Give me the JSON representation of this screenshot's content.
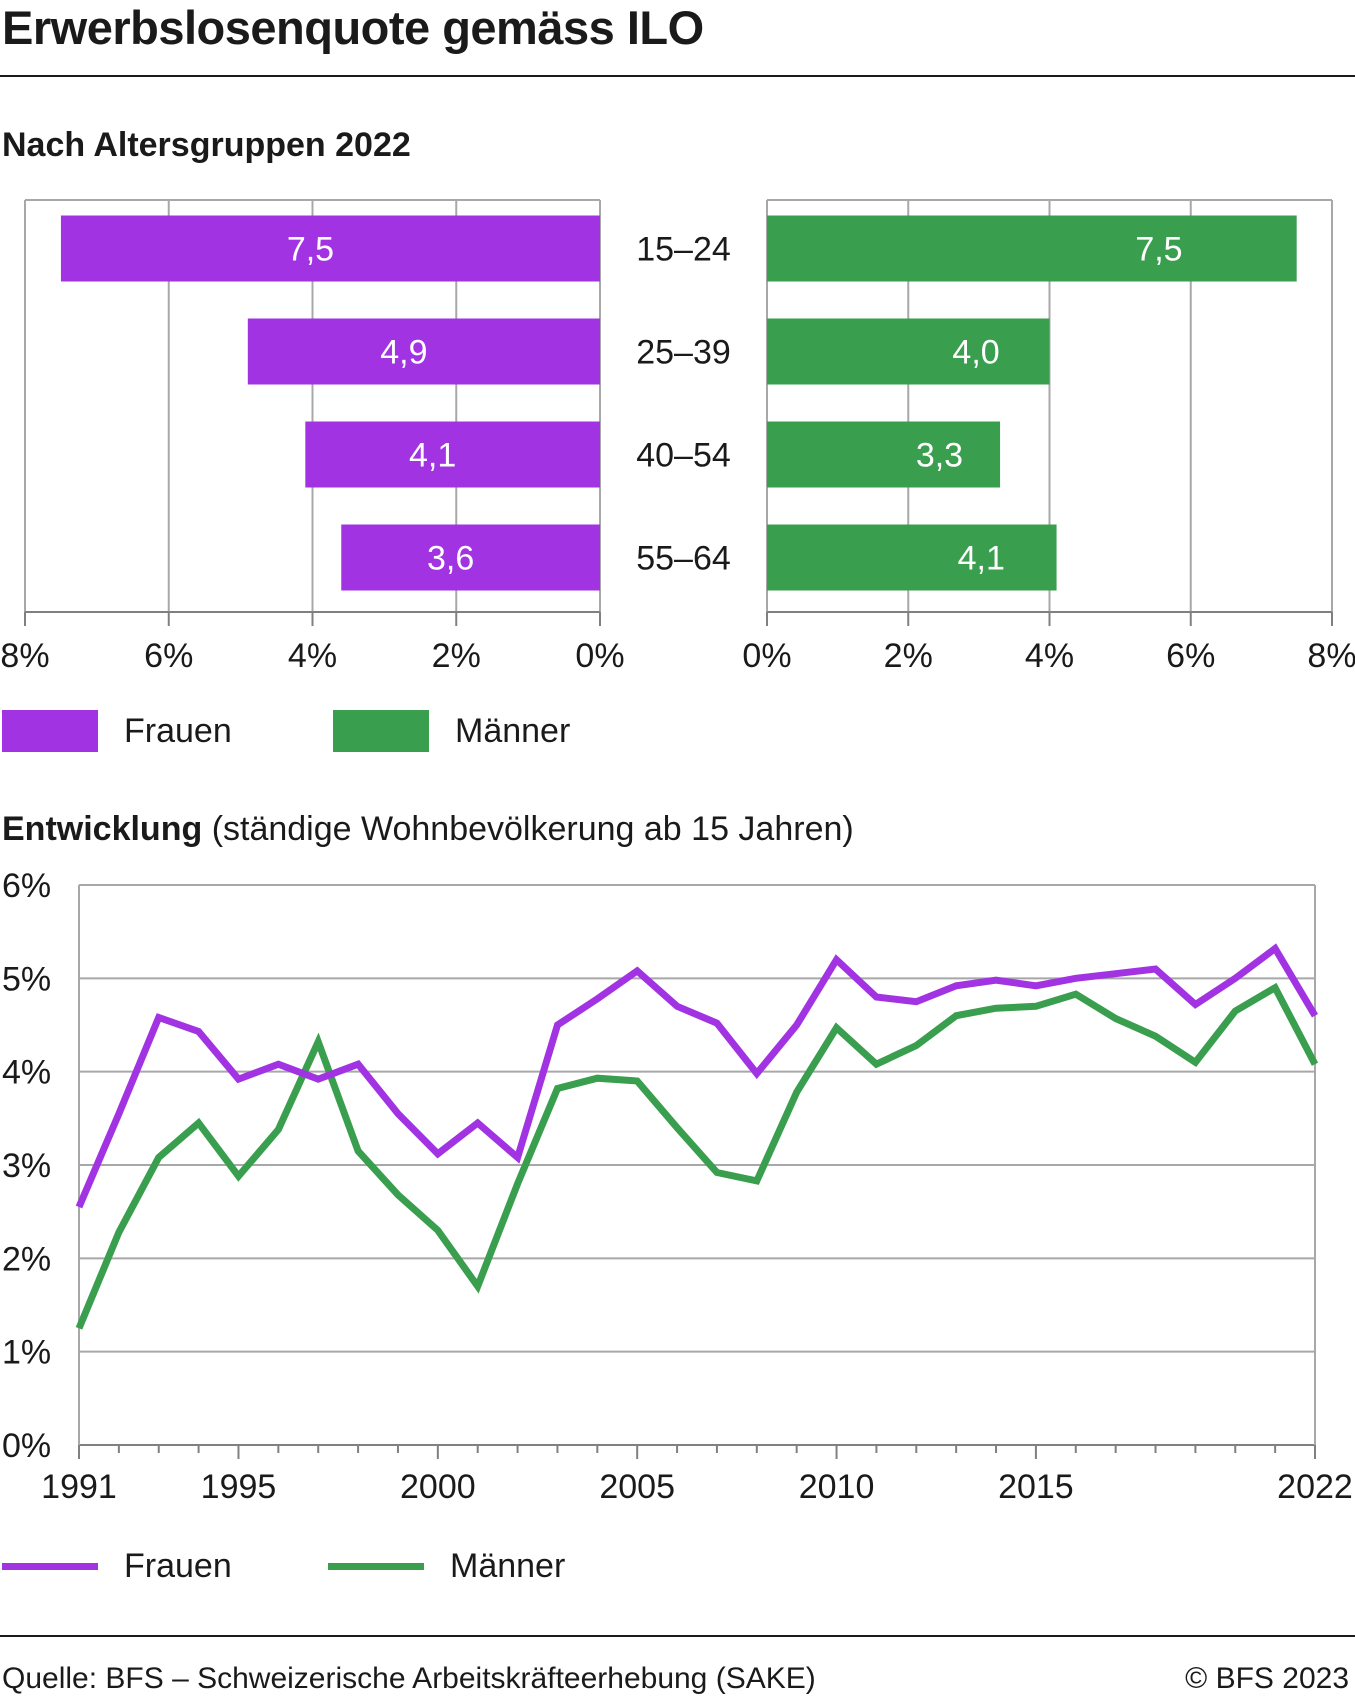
{
  "title": "Erwerbslosenquote gemäss ILO",
  "source": "Quelle: BFS – Schweizerische Arbeitskräfteerhebung (SAKE)",
  "copyright": "© BFS 2023",
  "colors": {
    "frauen": "#a233e3",
    "maenner": "#3a9e4f",
    "grid": "#a8a8a8",
    "axis": "#808080"
  },
  "legend": {
    "frauen": "Frauen",
    "maenner": "Männer"
  },
  "chart_data": [
    {
      "type": "bar",
      "title": "Nach Altersgruppen 2022",
      "categories": [
        "15–24",
        "25–39",
        "40–54",
        "55–64"
      ],
      "series": [
        {
          "name": "Frauen",
          "values": [
            7.5,
            4.9,
            4.1,
            3.6
          ],
          "labels": [
            "7,5",
            "4,9",
            "4,1",
            "3,6"
          ],
          "side": "left"
        },
        {
          "name": "Männer",
          "values": [
            7.5,
            4.0,
            3.3,
            4.1
          ],
          "labels": [
            "7,5",
            "4,0",
            "3,3",
            "4,1"
          ],
          "side": "right"
        }
      ],
      "xlim": [
        0,
        8
      ],
      "ticks_left": [
        "8%",
        "6%",
        "4%",
        "2%",
        "0%"
      ],
      "ticks_right": [
        "0%",
        "2%",
        "4%",
        "6%",
        "8%"
      ],
      "grid": true,
      "legend_position": "bottom-left"
    },
    {
      "type": "line",
      "title": "Entwicklung",
      "subtitle": "(ständige Wohnbevölkerung ab 15 Jahren)",
      "x": [
        1991,
        1992,
        1993,
        1994,
        1995,
        1996,
        1997,
        1998,
        1999,
        2000,
        2001,
        2002,
        2003,
        2004,
        2005,
        2006,
        2007,
        2008,
        2009,
        2010,
        2011,
        2012,
        2013,
        2014,
        2015,
        2016,
        2017,
        2018,
        2019,
        2020,
        2021,
        2022
      ],
      "series": [
        {
          "name": "Frauen",
          "values": [
            2.55,
            3.55,
            4.58,
            4.43,
            3.92,
            4.08,
            3.92,
            4.08,
            3.55,
            3.12,
            3.45,
            3.08,
            4.5,
            4.78,
            5.08,
            4.7,
            4.52,
            3.98,
            4.5,
            5.2,
            4.8,
            4.75,
            4.92,
            4.98,
            4.92,
            5.0,
            5.05,
            5.1,
            4.72,
            5.0,
            5.32,
            4.6
          ]
        },
        {
          "name": "Männer",
          "values": [
            1.25,
            2.28,
            3.08,
            3.45,
            2.88,
            3.38,
            4.32,
            3.15,
            2.68,
            2.3,
            1.7,
            2.8,
            3.82,
            3.93,
            3.9,
            3.4,
            2.92,
            2.83,
            3.78,
            4.47,
            4.08,
            4.28,
            4.6,
            4.68,
            4.7,
            4.83,
            4.57,
            4.38,
            4.1,
            4.65,
            4.9,
            4.08
          ]
        }
      ],
      "ylim": [
        0,
        6
      ],
      "yticks": [
        "0%",
        "1%",
        "2%",
        "3%",
        "4%",
        "5%",
        "6%"
      ],
      "xtick_labels": [
        1991,
        1995,
        2000,
        2005,
        2010,
        2015,
        2022
      ],
      "grid": true,
      "legend_position": "bottom-left"
    }
  ]
}
